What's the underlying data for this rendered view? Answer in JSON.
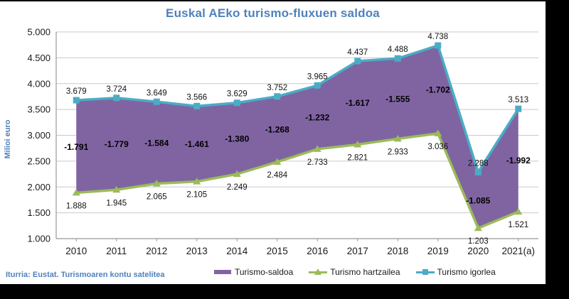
{
  "title": "Euskal AEko turismo-fluxuen saldoa",
  "source_note": "Iturria: Eustat. Turismoaren kontu satelitea",
  "colors": {
    "title_text": "#4F81BD",
    "axis_line": "#999999",
    "gridline": "#C9C9C9",
    "tick_text": "#1A1A1A",
    "data_label_text": "#111111",
    "frame_background": "#000000",
    "panel_background": "#FFFFFF"
  },
  "chart_data": {
    "type": "area",
    "title": "Euskal AEko turismo-fluxuen saldoa",
    "xlabel": "",
    "ylabel": "Milioi euro",
    "ylim": [
      1000,
      5000
    ],
    "ytick_step": 500,
    "grid": true,
    "legend_position": "bottom",
    "number_format": "thousands-dot",
    "categories": [
      "2010",
      "2011",
      "2012",
      "2013",
      "2014",
      "2015",
      "2016",
      "2017",
      "2018",
      "2019",
      "2020",
      "2021(a)"
    ],
    "series": [
      {
        "name": "Turismo-saldoa",
        "type": "band",
        "color": "#8064A2",
        "between": [
          "Turismo hartzailea",
          "Turismo igorlea"
        ],
        "values": [
          -1791,
          -1779,
          -1584,
          -1461,
          -1380,
          -1268,
          -1232,
          -1617,
          -1555,
          -1702,
          -1085,
          -1992
        ]
      },
      {
        "name": "Turismo hartzailea",
        "type": "line",
        "marker": "triangle",
        "color": "#9BBB59",
        "values": [
          1888,
          1945,
          2065,
          2105,
          2249,
          2484,
          2733,
          2821,
          2933,
          3036,
          1203,
          1521
        ]
      },
      {
        "name": "Turismo igorlea",
        "type": "line",
        "marker": "square",
        "color": "#4BACC6",
        "values": [
          3679,
          3724,
          3649,
          3566,
          3629,
          3752,
          3965,
          4437,
          4488,
          4738,
          2288,
          3513
        ]
      }
    ]
  }
}
